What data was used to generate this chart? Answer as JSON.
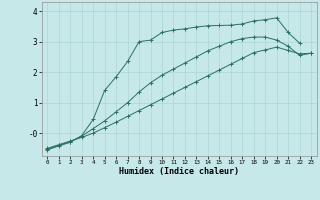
{
  "xlabel": "Humidex (Indice chaleur)",
  "background_color": "#c6e8e8",
  "grid_color": "#aed4d4",
  "line_color": "#2a7060",
  "ylim": [
    -0.75,
    4.3
  ],
  "xlim": [
    -0.5,
    23.5
  ],
  "yticks": [
    0,
    1,
    2,
    3,
    4
  ],
  "ytick_labels": [
    "-0",
    "1",
    "2",
    "3",
    "4"
  ],
  "x_ticks": [
    0,
    1,
    2,
    3,
    4,
    5,
    6,
    7,
    8,
    9,
    10,
    11,
    12,
    13,
    14,
    15,
    16,
    17,
    18,
    19,
    20,
    21,
    22,
    23
  ],
  "line1_x": [
    0,
    1,
    2,
    3,
    4,
    5,
    6,
    7,
    8,
    9,
    10,
    11,
    12,
    13,
    14,
    15,
    16,
    17,
    18,
    19,
    20,
    21,
    22,
    23
  ],
  "line1_y": [
    -0.5,
    -0.38,
    -0.26,
    -0.14,
    0.0,
    0.18,
    0.36,
    0.55,
    0.74,
    0.93,
    1.12,
    1.31,
    1.5,
    1.69,
    1.88,
    2.07,
    2.26,
    2.45,
    2.64,
    2.73,
    2.82,
    2.71,
    2.6,
    2.62
  ],
  "line2_x": [
    0,
    1,
    2,
    3,
    4,
    5,
    6,
    7,
    8,
    9,
    10,
    11,
    12,
    13,
    14,
    15,
    16,
    17,
    18,
    19,
    20,
    21,
    22,
    23
  ],
  "line2_y": [
    -0.52,
    -0.4,
    -0.28,
    -0.1,
    0.15,
    0.4,
    0.7,
    1.0,
    1.35,
    1.65,
    1.9,
    2.1,
    2.3,
    2.5,
    2.7,
    2.85,
    3.0,
    3.1,
    3.15,
    3.15,
    3.05,
    2.85,
    2.55,
    2.62
  ],
  "line3_x": [
    0,
    1,
    2,
    3,
    4,
    5,
    6,
    7,
    8,
    9,
    10,
    11,
    12,
    13,
    14,
    15,
    16,
    17,
    18,
    19,
    20,
    21,
    22
  ],
  "line3_y": [
    -0.55,
    -0.42,
    -0.3,
    -0.08,
    0.45,
    1.4,
    1.85,
    2.35,
    3.0,
    3.05,
    3.3,
    3.38,
    3.42,
    3.48,
    3.52,
    3.53,
    3.54,
    3.58,
    3.68,
    3.72,
    3.78,
    3.3,
    2.95
  ]
}
